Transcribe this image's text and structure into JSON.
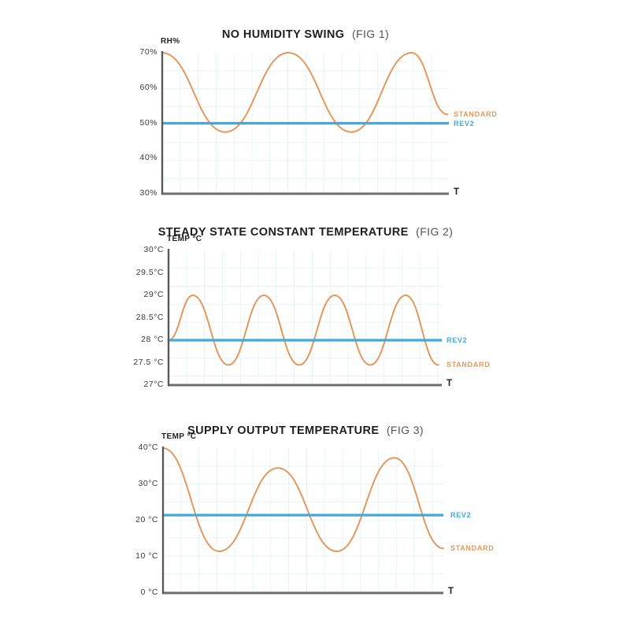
{
  "colors": {
    "standard": "#E4985C",
    "rev2": "#3FABDD",
    "axis_y": "#58595B",
    "axis_x": "#6D6E71",
    "grid": "#E8F3FA",
    "title": "#1F1F21",
    "fig_label": "#55555A",
    "tick": "#3A3A3C"
  },
  "chart_data": [
    {
      "type": "line",
      "title": "NO HUMIDITY SWING",
      "fig_label": "(FIG 1)",
      "y_axis_label": "RH%",
      "x_axis_label": "T",
      "ylim": [
        30,
        70
      ],
      "grid": true,
      "legend_position": "right-of-plot",
      "yticks": [
        {
          "label": "70%",
          "v": 70
        },
        {
          "label": "60%",
          "v": 60
        },
        {
          "label": "50%",
          "v": 50
        },
        {
          "label": "40%",
          "v": 40
        },
        {
          "label": "30%",
          "v": 30
        }
      ],
      "series": [
        {
          "name": "STANDARD",
          "color_key": "standard",
          "shape": "wave",
          "points": [
            [
              0,
              70
            ],
            [
              22,
              47.5
            ],
            [
              44,
              70
            ],
            [
              66,
              47.5
            ],
            [
              87,
              70
            ],
            [
              99.5,
              52.5
            ]
          ]
        },
        {
          "name": "REV2",
          "color_key": "rev2",
          "shape": "flat",
          "value": 50
        }
      ]
    },
    {
      "type": "line",
      "title": "STEADY STATE CONSTANT TEMPERATURE",
      "fig_label": "(FIG 2)",
      "y_axis_label": "TEMP °C",
      "x_axis_label": "T",
      "ylim": [
        27,
        30
      ],
      "grid": true,
      "legend_position": "right-of-plot",
      "yticks": [
        {
          "label": "30°C",
          "v": 30
        },
        {
          "label": "29.5°C",
          "v": 29.5
        },
        {
          "label": "29°C",
          "v": 29
        },
        {
          "label": "28.5°C",
          "v": 28.5
        },
        {
          "label": "28 °C",
          "v": 28
        },
        {
          "label": "27.5 °C",
          "v": 27.5
        },
        {
          "label": "27°C",
          "v": 27
        }
      ],
      "series": [
        {
          "name": "STANDARD",
          "color_key": "standard",
          "shape": "wave",
          "points": [
            [
              0,
              28
            ],
            [
              8.9,
              29
            ],
            [
              21.9,
              27.45
            ],
            [
              34.9,
              29
            ],
            [
              47.8,
              27.45
            ],
            [
              60.8,
              29
            ],
            [
              73.8,
              27.45
            ],
            [
              86.8,
              29
            ],
            [
              98.8,
              27.45
            ]
          ]
        },
        {
          "name": "REV2",
          "color_key": "rev2",
          "shape": "flat",
          "value": 28
        }
      ]
    },
    {
      "type": "line",
      "title": "SUPPLY OUTPUT TEMPERATURE",
      "fig_label": "(FIG 3)",
      "y_axis_label": "TEMP °C",
      "x_axis_label": "T",
      "ylim": [
        0,
        40
      ],
      "grid": true,
      "legend_position": "right-of-plot",
      "yticks": [
        {
          "label": "40°C",
          "v": 40
        },
        {
          "label": "30°C",
          "v": 30
        },
        {
          "label": "20 °C",
          "v": 20
        },
        {
          "label": "10 °C",
          "v": 10
        },
        {
          "label": "0 °C",
          "v": 0
        }
      ],
      "series": [
        {
          "name": "STANDARD",
          "color_key": "standard",
          "shape": "wave",
          "points": [
            [
              0,
              40
            ],
            [
              20,
              11.5
            ],
            [
              41,
              34.5
            ],
            [
              62,
              11.5
            ],
            [
              82.5,
              37.3
            ],
            [
              100,
              12.3
            ]
          ]
        },
        {
          "name": "REV2",
          "color_key": "rev2",
          "shape": "flat",
          "value": 21.5
        }
      ]
    }
  ]
}
